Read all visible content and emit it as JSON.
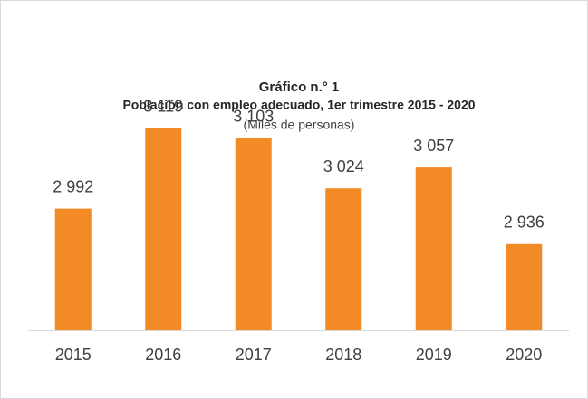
{
  "chart_data": {
    "type": "bar",
    "title": "Gráfico n.° 1",
    "subtitle": "Población con empleo adecuado, 1er trimestre 2015 - 2020",
    "unit_label": "(Miles de personas)",
    "categories": [
      "2015",
      "2016",
      "2017",
      "2018",
      "2019",
      "2020"
    ],
    "values": [
      2992,
      3119,
      3103,
      3024,
      3057,
      2936
    ],
    "value_labels": [
      "2 992",
      "3 119",
      "3 103",
      "3 024",
      "3 057",
      "2 936"
    ],
    "color": "#f28a25",
    "ylim": [
      2800,
      3200
    ]
  }
}
